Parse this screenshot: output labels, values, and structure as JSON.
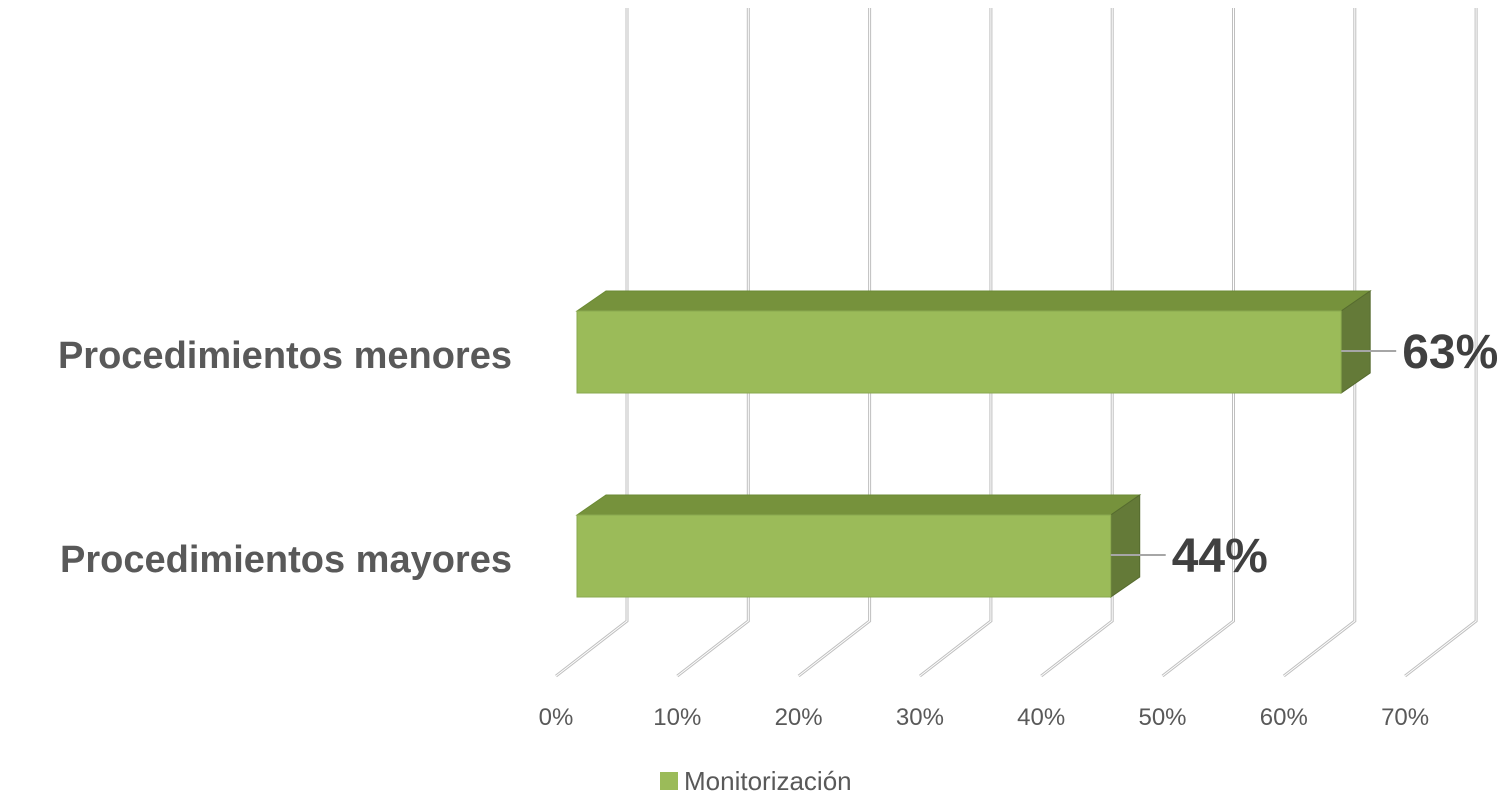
{
  "chart_data": {
    "type": "bar",
    "orientation": "horizontal",
    "style": "3d-clustered",
    "categories": [
      "Procedimientos menores",
      "Procedimientos mayores"
    ],
    "series": [
      {
        "name": "Monitorización",
        "values": [
          63,
          44
        ],
        "color": "#9BBB59"
      }
    ],
    "data_labels": [
      "63%",
      "44%"
    ],
    "xlim": [
      0,
      70
    ],
    "x_ticks": [
      0,
      10,
      20,
      30,
      40,
      50,
      60,
      70
    ],
    "x_tick_labels": [
      "0%",
      "10%",
      "20%",
      "30%",
      "40%",
      "50%",
      "60%",
      "70%"
    ],
    "grid": true,
    "legend_position": "bottom",
    "colors": {
      "bar_front": "#9BBB59",
      "bar_top": "#76923C",
      "bar_side": "#647A38",
      "grid": "#D0D0D0"
    }
  }
}
